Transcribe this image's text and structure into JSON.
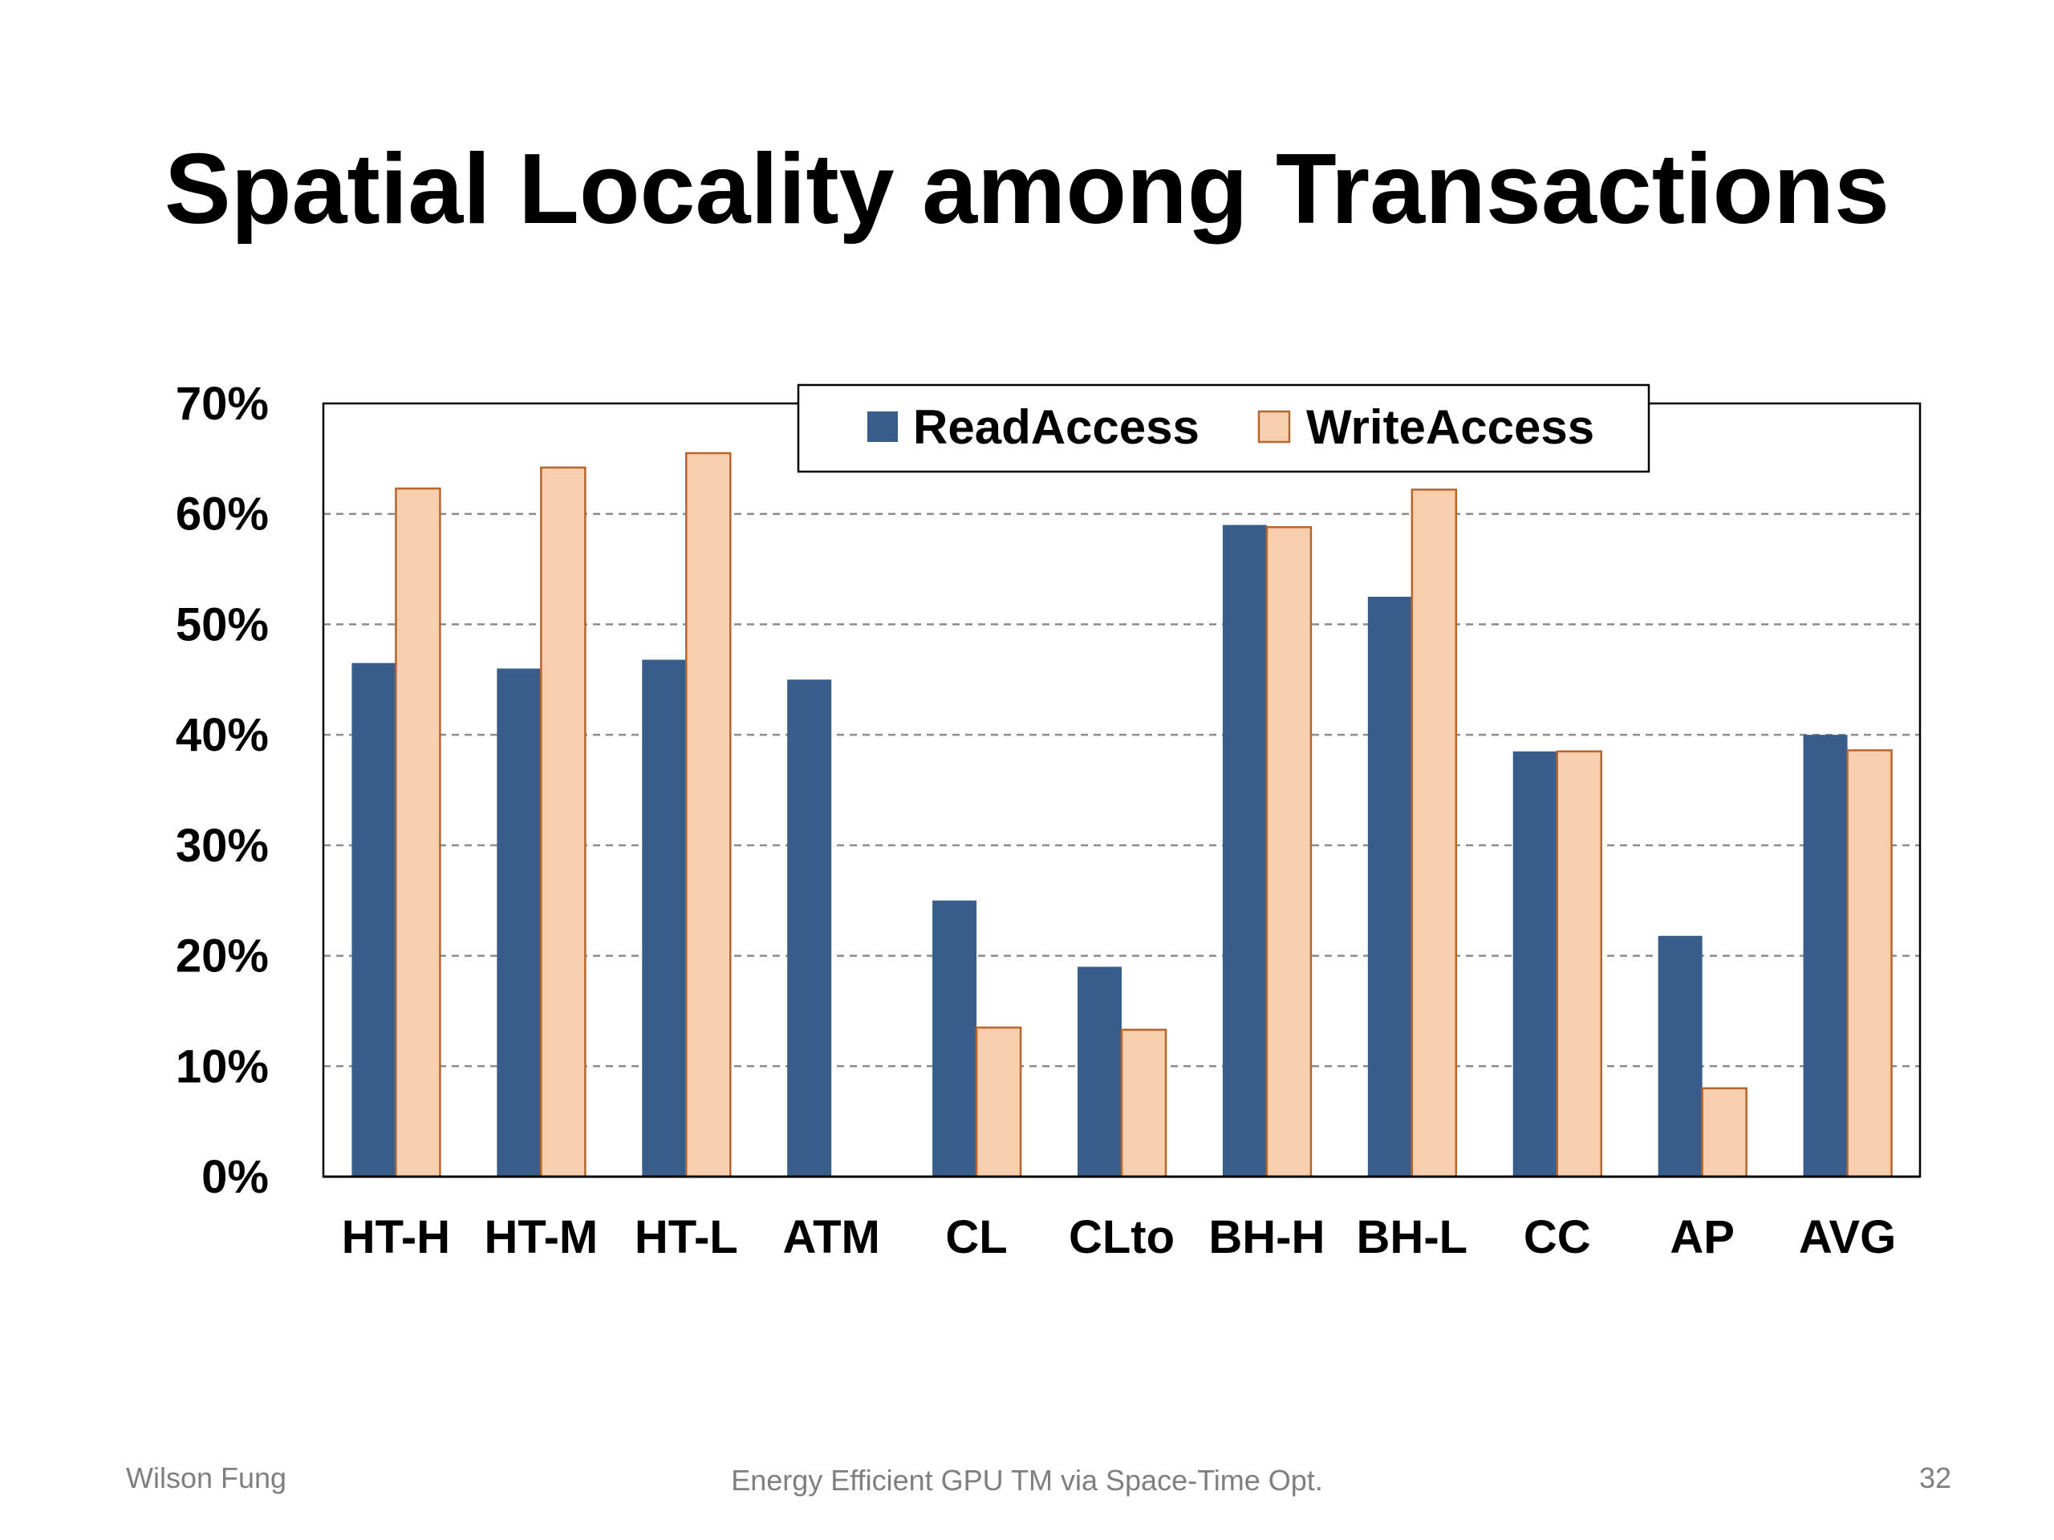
{
  "slide": {
    "title": "Spatial Locality among Transactions",
    "footer_left": "Wilson Fung",
    "footer_center": "Energy Efficient GPU TM via Space-Time Opt.",
    "page_number": "32"
  },
  "colors": {
    "read": "#385D8A",
    "write": "#F8CFAE",
    "write_stroke": "#B8652A",
    "grid": "#8C8C8C",
    "axis": "#000000"
  },
  "chart_data": {
    "type": "bar",
    "title": "",
    "xlabel": "",
    "ylabel": "",
    "ylim": [
      0,
      70
    ],
    "y_ticks": [
      "0%",
      "10%",
      "20%",
      "30%",
      "40%",
      "50%",
      "60%",
      "70%"
    ],
    "grid": "horizontal-dashed",
    "legend_position": "top-center",
    "categories": [
      "HT-H",
      "HT-M",
      "HT-L",
      "ATM",
      "CL",
      "CLto",
      "BH-H",
      "BH-L",
      "CC",
      "AP",
      "AVG"
    ],
    "series": [
      {
        "name": "ReadAccess",
        "values": [
          46.5,
          46,
          46.8,
          45,
          25,
          19,
          59,
          52.5,
          38.5,
          21.8,
          40
        ]
      },
      {
        "name": "WriteAccess",
        "values": [
          62.3,
          64.2,
          65.5,
          null,
          13.5,
          13.3,
          58.8,
          62.2,
          38.5,
          8,
          38.6
        ]
      }
    ]
  }
}
